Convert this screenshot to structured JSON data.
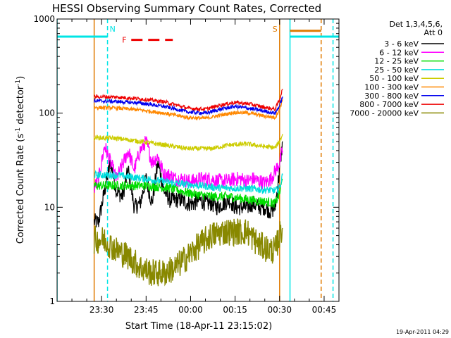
{
  "colors": {
    "bg": "#ffffff",
    "axis": "#000000",
    "cyan": "#00e5e5",
    "orange": "#e07a00",
    "red": "#ee0000"
  },
  "chart_data": {
    "type": "line",
    "title": "HESSI Observing Summary Count Rates, Corrected",
    "xlabel": "Start Time (18-Apr-11 23:15:02)",
    "ylabel": "Corrected Count Rate (s",
    "ylabel_sup1": "-1",
    "ylabel_mid": " detector",
    "ylabel_sup2": "-1",
    "ylabel_end": ")",
    "yscale": "log",
    "ylim": [
      1,
      1000
    ],
    "yticks": [
      {
        "v": 1,
        "label": "1"
      },
      {
        "v": 10,
        "label": "10"
      },
      {
        "v": 100,
        "label": "100"
      },
      {
        "v": 1000,
        "label": "1000"
      }
    ],
    "x_unit": "minutes after 23:15:02",
    "xlim": [
      0,
      95
    ],
    "xticks": [
      {
        "v": 15,
        "label": "23:30"
      },
      {
        "v": 30,
        "label": "23:45"
      },
      {
        "v": 45,
        "label": "00:00"
      },
      {
        "v": 60,
        "label": "00:15"
      },
      {
        "v": 75,
        "label": "00:30"
      },
      {
        "v": 90,
        "label": "00:45"
      }
    ],
    "legend_header": [
      "Det 1,3,4,5,6,",
      "Att 0"
    ],
    "legend_placement": "right",
    "timestamp": "19-Apr-2011 04:29",
    "series": [
      {
        "name": "3 - 6 keV",
        "color": "#000000",
        "noise": 0.09,
        "points": [
          [
            12.5,
            7
          ],
          [
            14,
            7
          ],
          [
            16,
            15
          ],
          [
            18,
            30
          ],
          [
            20,
            15
          ],
          [
            22,
            13
          ],
          [
            24,
            25
          ],
          [
            26,
            10
          ],
          [
            28,
            11
          ],
          [
            30,
            20
          ],
          [
            32,
            11
          ],
          [
            34,
            30
          ],
          [
            36,
            15
          ],
          [
            38,
            12
          ],
          [
            40,
            12
          ],
          [
            42,
            12
          ],
          [
            44,
            11
          ],
          [
            46,
            11
          ],
          [
            48,
            12
          ],
          [
            50,
            11
          ],
          [
            52,
            11
          ],
          [
            54,
            10
          ],
          [
            56,
            11
          ],
          [
            58,
            12
          ],
          [
            60,
            10
          ],
          [
            62,
            10
          ],
          [
            64,
            10
          ],
          [
            66,
            11
          ],
          [
            68,
            10
          ],
          [
            70,
            10
          ],
          [
            72,
            9
          ],
          [
            73.5,
            10
          ],
          [
            75,
            25
          ],
          [
            76,
            50
          ]
        ]
      },
      {
        "name": "6 - 12 keV",
        "color": "#ff00ff",
        "noise": 0.08,
        "points": [
          [
            12.5,
            16
          ],
          [
            14,
            20
          ],
          [
            16,
            45
          ],
          [
            18,
            30
          ],
          [
            20,
            20
          ],
          [
            22,
            28
          ],
          [
            24,
            40
          ],
          [
            26,
            25
          ],
          [
            28,
            40
          ],
          [
            30,
            50
          ],
          [
            32,
            30
          ],
          [
            34,
            35
          ],
          [
            36,
            22
          ],
          [
            38,
            22
          ],
          [
            40,
            20
          ],
          [
            42,
            20
          ],
          [
            44,
            19
          ],
          [
            46,
            19
          ],
          [
            48,
            20
          ],
          [
            50,
            20
          ],
          [
            52,
            20
          ],
          [
            54,
            19
          ],
          [
            56,
            19
          ],
          [
            58,
            19
          ],
          [
            60,
            20
          ],
          [
            62,
            20
          ],
          [
            64,
            19
          ],
          [
            66,
            20
          ],
          [
            68,
            19
          ],
          [
            70,
            18
          ],
          [
            72,
            20
          ],
          [
            73.5,
            24
          ],
          [
            75,
            30
          ],
          [
            76,
            40
          ]
        ]
      },
      {
        "name": "12 - 25 keV",
        "color": "#00dd00",
        "noise": 0.05,
        "points": [
          [
            12.5,
            17
          ],
          [
            20,
            17
          ],
          [
            30,
            17
          ],
          [
            38,
            16
          ],
          [
            45,
            14
          ],
          [
            52,
            13
          ],
          [
            58,
            13
          ],
          [
            65,
            12
          ],
          [
            70,
            11.5
          ],
          [
            73.5,
            11
          ],
          [
            75,
            14
          ],
          [
            76,
            20
          ]
        ]
      },
      {
        "name": "25 - 50 keV",
        "color": "#00dddd",
        "noise": 0.04,
        "points": [
          [
            12.5,
            22
          ],
          [
            20,
            22
          ],
          [
            30,
            20
          ],
          [
            40,
            18
          ],
          [
            48,
            17
          ],
          [
            55,
            16
          ],
          [
            62,
            16
          ],
          [
            68,
            15.5
          ],
          [
            73.5,
            15
          ],
          [
            75,
            16
          ],
          [
            76,
            22
          ]
        ]
      },
      {
        "name": "50 - 100 keV",
        "color": "#cccc00",
        "noise": 0.025,
        "points": [
          [
            12.5,
            55
          ],
          [
            20,
            54
          ],
          [
            28,
            50
          ],
          [
            36,
            46
          ],
          [
            44,
            42
          ],
          [
            52,
            42
          ],
          [
            58,
            46
          ],
          [
            64,
            47
          ],
          [
            70,
            44
          ],
          [
            73.5,
            43
          ],
          [
            75,
            50
          ],
          [
            76,
            60
          ]
        ]
      },
      {
        "name": "100 - 300 keV",
        "color": "#ff8800",
        "noise": 0.02,
        "points": [
          [
            12.5,
            115
          ],
          [
            20,
            113
          ],
          [
            28,
            108
          ],
          [
            36,
            100
          ],
          [
            44,
            90
          ],
          [
            50,
            88
          ],
          [
            55,
            95
          ],
          [
            60,
            102
          ],
          [
            65,
            100
          ],
          [
            70,
            93
          ],
          [
            73.5,
            90
          ],
          [
            75,
            110
          ],
          [
            76,
            140
          ]
        ]
      },
      {
        "name": "300 - 800 keV",
        "color": "#0000ee",
        "noise": 0.02,
        "points": [
          [
            12.5,
            135
          ],
          [
            20,
            133
          ],
          [
            28,
            128
          ],
          [
            36,
            118
          ],
          [
            44,
            103
          ],
          [
            50,
            100
          ],
          [
            55,
            110
          ],
          [
            60,
            118
          ],
          [
            65,
            112
          ],
          [
            70,
            105
          ],
          [
            73.5,
            100
          ],
          [
            75,
            120
          ],
          [
            76,
            150
          ]
        ]
      },
      {
        "name": "800 - 7000 keV",
        "color": "#ee0000",
        "noise": 0.02,
        "points": [
          [
            12.5,
            150
          ],
          [
            20,
            148
          ],
          [
            28,
            142
          ],
          [
            36,
            132
          ],
          [
            44,
            113
          ],
          [
            50,
            110
          ],
          [
            55,
            122
          ],
          [
            60,
            130
          ],
          [
            65,
            125
          ],
          [
            70,
            115
          ],
          [
            73.5,
            110
          ],
          [
            75,
            140
          ],
          [
            76,
            180
          ]
        ]
      },
      {
        "name": "7000 - 20000 keV",
        "color": "#888800",
        "noise": 0.15,
        "points": [
          [
            12.5,
            4.5
          ],
          [
            16,
            4.5
          ],
          [
            20,
            3.5
          ],
          [
            24,
            3.0
          ],
          [
            28,
            2.3
          ],
          [
            32,
            2.0
          ],
          [
            36,
            2.0
          ],
          [
            40,
            2.3
          ],
          [
            44,
            3.0
          ],
          [
            48,
            4.0
          ],
          [
            52,
            5.0
          ],
          [
            56,
            5.5
          ],
          [
            60,
            5.5
          ],
          [
            64,
            5.5
          ],
          [
            68,
            4.0
          ],
          [
            72,
            3.5
          ],
          [
            73.5,
            3.5
          ],
          [
            75,
            5
          ],
          [
            76,
            6
          ]
        ]
      }
    ],
    "annotations": [
      {
        "label": "N",
        "x": 17
      },
      {
        "label": "S",
        "x": 75
      }
    ],
    "flare_label": "F",
    "flare_segment": [
      25,
      39,
      600
    ],
    "night_bar_1": [
      0,
      17,
      650
    ],
    "night_bar_2": [
      78.5,
      95,
      650
    ],
    "saa_bar": [
      78.5,
      89,
      750
    ],
    "vlines": [
      {
        "x": 0,
        "color": "#00e5e5",
        "style": "solid"
      },
      {
        "x": 17,
        "color": "#00e5e5",
        "style": "dashed"
      },
      {
        "x": 12.5,
        "color": "#e07a00",
        "style": "solid"
      },
      {
        "x": 75,
        "color": "#e07a00",
        "style": "solid"
      },
      {
        "x": 78.5,
        "color": "#00e5e5",
        "style": "solid"
      },
      {
        "x": 89,
        "color": "#e07a00",
        "style": "dashed"
      },
      {
        "x": 93,
        "color": "#00e5e5",
        "style": "dashed"
      }
    ]
  }
}
